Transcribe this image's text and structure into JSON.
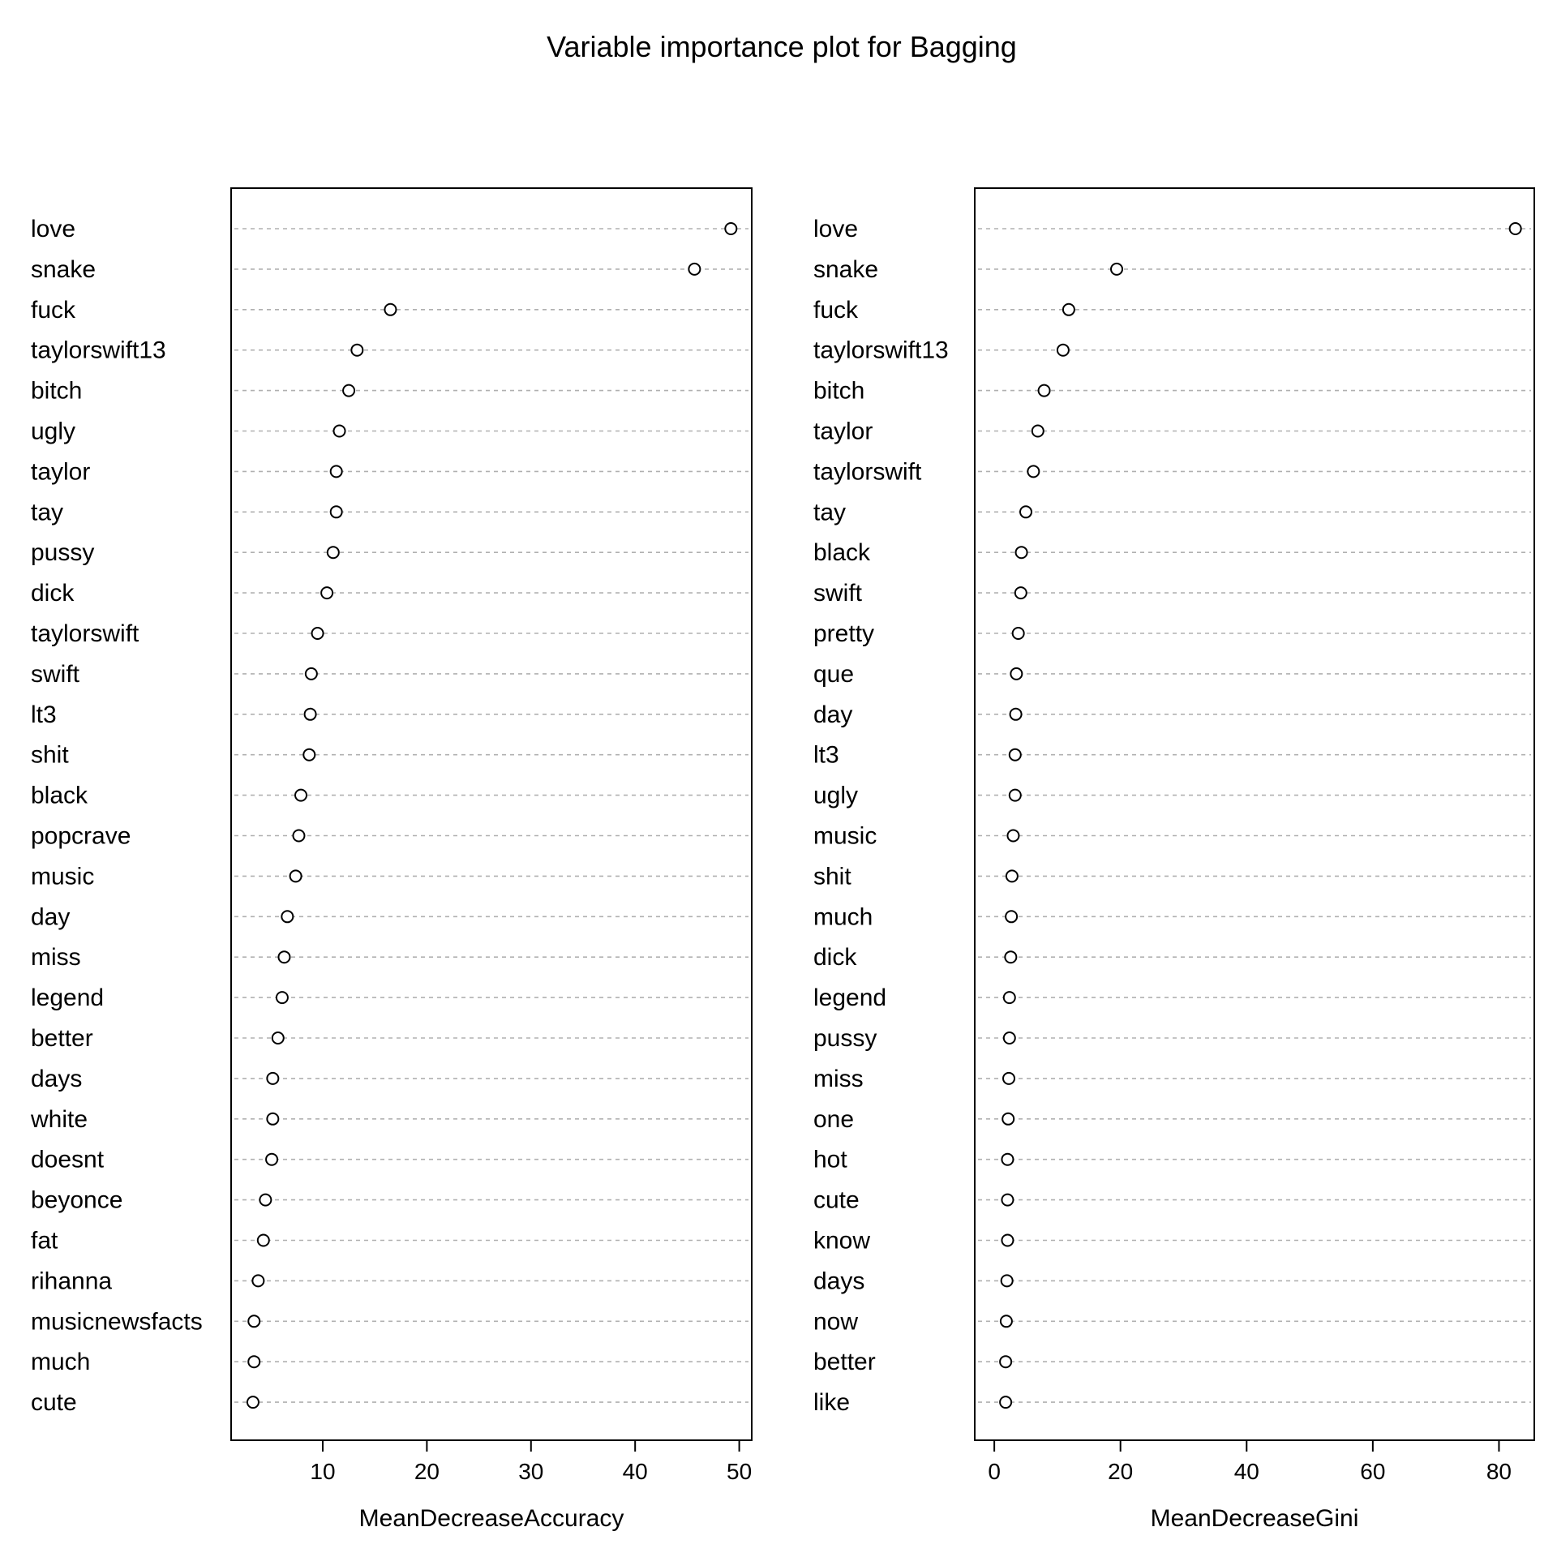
{
  "chart_data": {
    "type": "scatter",
    "title": "Variable importance plot for Bagging",
    "panels": [
      {
        "xlabel": "MeanDecreaseAccuracy",
        "xlim": [
          1.2,
          51.2
        ],
        "xticks": [
          10,
          20,
          30,
          40,
          50
        ],
        "categories": [
          "love",
          "snake",
          "fuck",
          "taylorswift13",
          "bitch",
          "ugly",
          "taylor",
          "tay",
          "pussy",
          "dick",
          "taylorswift",
          "swift",
          "lt3",
          "shit",
          "black",
          "popcrave",
          "music",
          "day",
          "miss",
          "legend",
          "better",
          "days",
          "white",
          "doesnt",
          "beyonce",
          "fat",
          "rihanna",
          "musicnewsfacts",
          "much",
          "cute"
        ],
        "values": [
          49.2,
          45.7,
          16.5,
          13.3,
          12.5,
          11.6,
          11.3,
          11.3,
          11.0,
          10.4,
          9.5,
          8.9,
          8.8,
          8.7,
          7.9,
          7.7,
          7.4,
          6.6,
          6.3,
          6.1,
          5.7,
          5.2,
          5.2,
          5.1,
          4.5,
          4.3,
          3.8,
          3.4,
          3.4,
          3.3
        ]
      },
      {
        "xlabel": "MeanDecreaseGini",
        "xlim": [
          -3.1,
          85.6
        ],
        "xticks": [
          0,
          20,
          40,
          60,
          80
        ],
        "categories": [
          "love",
          "snake",
          "fuck",
          "taylorswift13",
          "bitch",
          "taylor",
          "taylorswift",
          "tay",
          "black",
          "swift",
          "pretty",
          "que",
          "day",
          "lt3",
          "ugly",
          "music",
          "shit",
          "much",
          "dick",
          "legend",
          "pussy",
          "miss",
          "one",
          "hot",
          "cute",
          "know",
          "days",
          "now",
          "better",
          "like"
        ],
        "values": [
          82.6,
          19.4,
          11.8,
          10.9,
          7.9,
          6.9,
          6.2,
          5.0,
          4.3,
          4.2,
          3.8,
          3.5,
          3.4,
          3.3,
          3.3,
          3.0,
          2.8,
          2.7,
          2.6,
          2.4,
          2.4,
          2.3,
          2.2,
          2.1,
          2.1,
          2.1,
          2.0,
          1.9,
          1.8,
          1.8
        ]
      }
    ]
  }
}
